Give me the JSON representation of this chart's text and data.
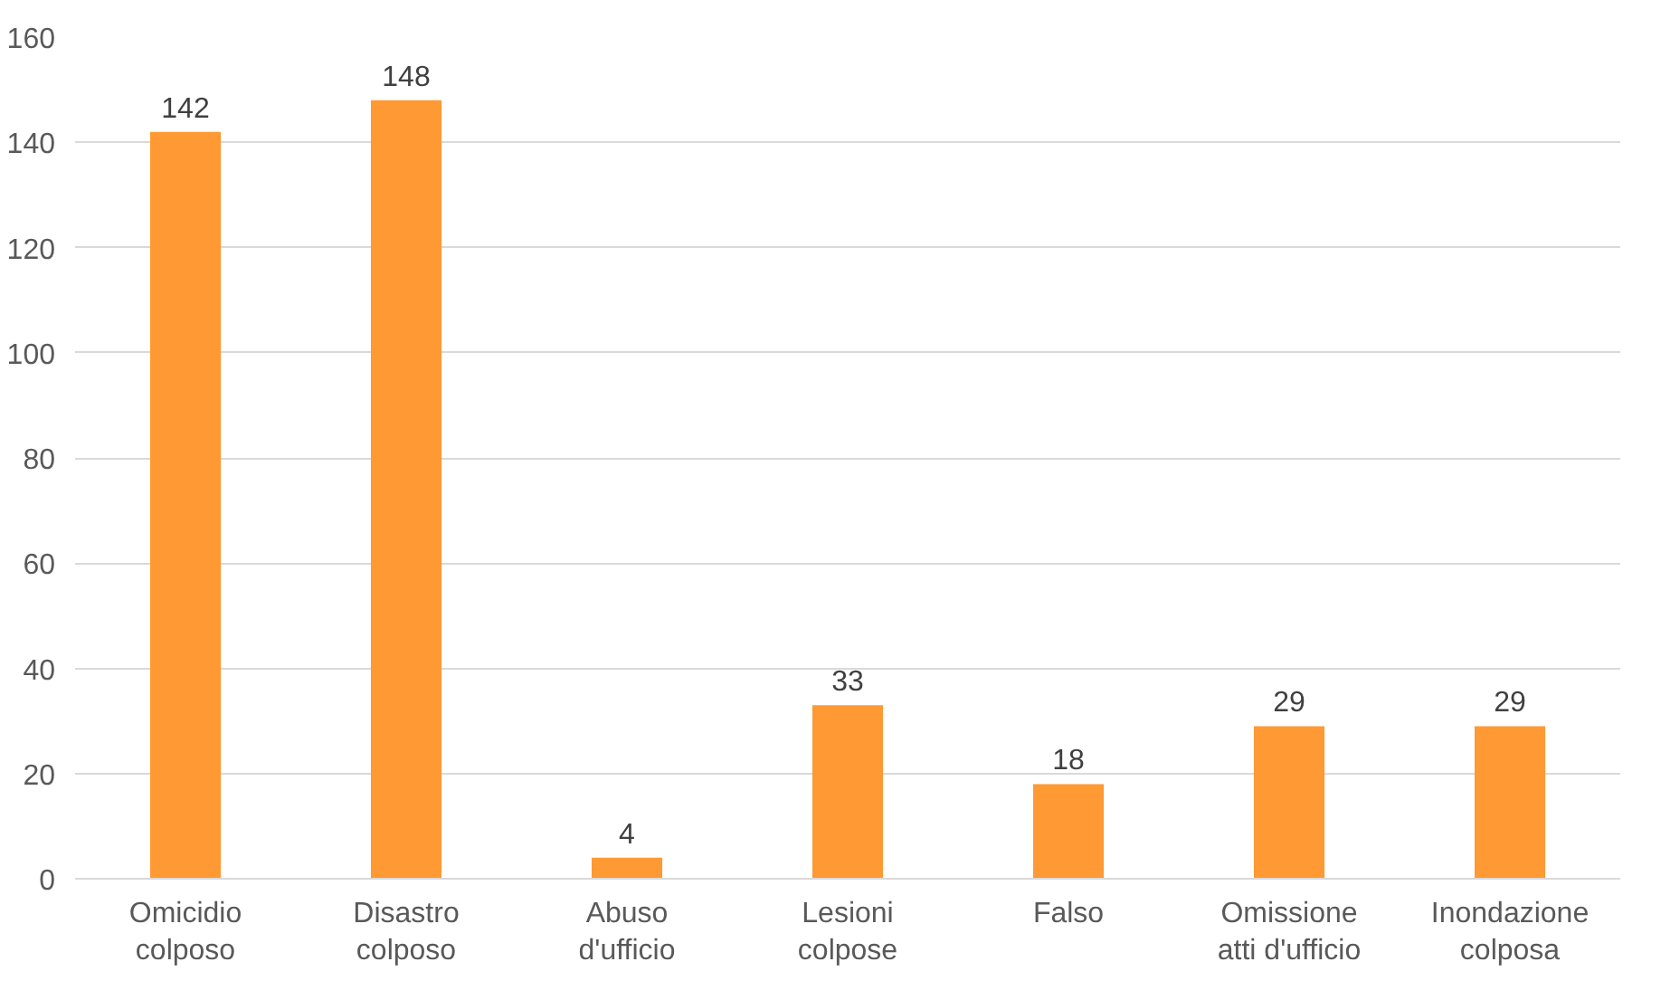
{
  "chart_data": {
    "type": "bar",
    "categories": [
      "Omicidio\ncolposo",
      "Disastro\ncolposo",
      "Abuso\nd'ufficio",
      "Lesioni\ncolpose",
      "Falso",
      "Omissione\natti d'ufficio",
      "Inondazione\ncolposa"
    ],
    "values": [
      142,
      148,
      4,
      33,
      18,
      29,
      29
    ],
    "color": "#ff9933",
    "ylim": [
      0,
      160
    ],
    "yticks": [
      0,
      20,
      40,
      60,
      80,
      100,
      120,
      140,
      160
    ],
    "grid": "y",
    "data_labels": true
  }
}
